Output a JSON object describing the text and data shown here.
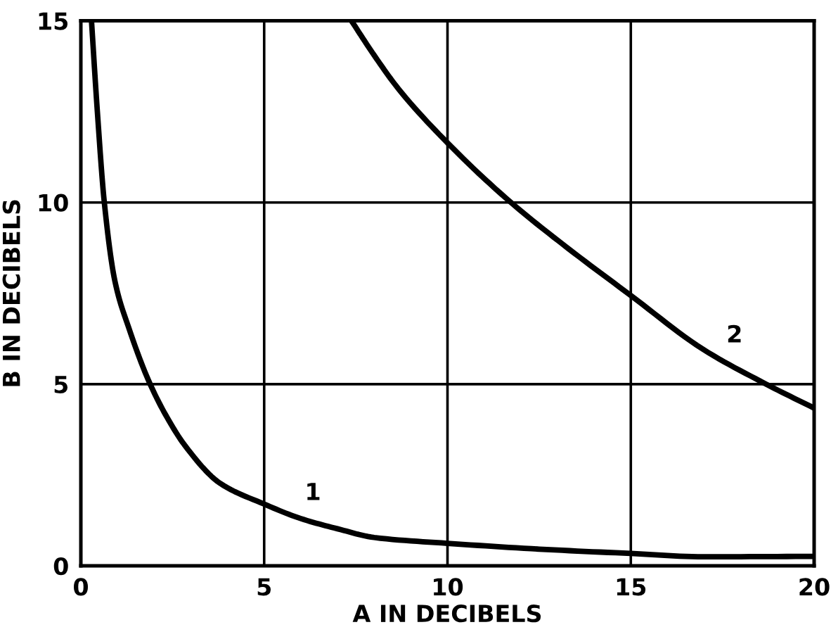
{
  "chart_data": {
    "type": "line",
    "xlabel": "A IN DECIBELS",
    "ylabel": "B IN DECIBELS",
    "xlim": [
      0,
      20
    ],
    "ylim": [
      0,
      15
    ],
    "xticks": [
      0,
      5,
      10,
      15,
      20
    ],
    "yticks": [
      0,
      5,
      10,
      15
    ],
    "grid": true,
    "marker": "none",
    "line_style": "solid",
    "series": [
      {
        "name": "1",
        "color": "#000000",
        "x": [
          0.29,
          0.45,
          0.64,
          0.93,
          1.31,
          1.89,
          2.4,
          2.84,
          3.8,
          5.0,
          6.0,
          7.0,
          8.0,
          10.0,
          12.5,
          15.0,
          17.0,
          20.0
        ],
        "values": [
          15,
          12.5,
          10,
          7.83,
          6.54,
          5,
          4.0,
          3.31,
          2.27,
          1.7,
          1.3,
          1.02,
          0.78,
          0.62,
          0.46,
          0.34,
          0.25,
          0.26
        ]
      },
      {
        "name": "2",
        "color": "#000000",
        "x": [
          7.38,
          8.0,
          8.66,
          10.0,
          11.73,
          13.13,
          15.0,
          16.97,
          18.69,
          20.0
        ],
        "values": [
          15,
          14.05,
          13.13,
          11.64,
          10,
          8.86,
          7.44,
          5.96,
          5,
          4.34
        ]
      }
    ]
  }
}
